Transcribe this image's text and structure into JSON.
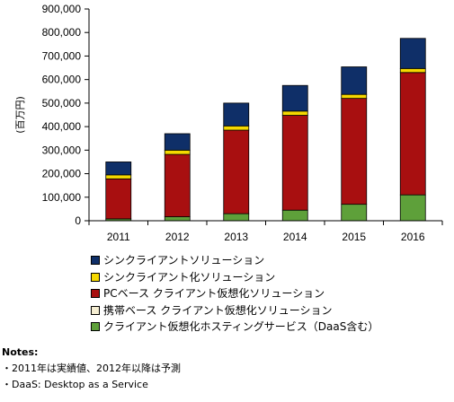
{
  "chart_data": {
    "type": "bar",
    "stacked": true,
    "categories": [
      "2011",
      "2012",
      "2013",
      "2014",
      "2015",
      "2016"
    ],
    "ylabel": "(百万円)",
    "ylim": [
      0,
      900000
    ],
    "yticks": [
      "0",
      "100,000",
      "200,000",
      "300,000",
      "400,000",
      "500,000",
      "600,000",
      "700,000",
      "800,000",
      "900,000"
    ],
    "series": [
      {
        "name": "クライアント仮想化ホスティングサービス（DaaS含む）",
        "color": "#5ea03a",
        "values": [
          8000,
          17000,
          30000,
          45000,
          70000,
          110000
        ]
      },
      {
        "name": "携帯ベース クライアント仮想化ソリューション",
        "color": "#f5eed2",
        "values": [
          0,
          0,
          0,
          0,
          0,
          0
        ]
      },
      {
        "name": "PCベース クライアント仮想化ソリューション",
        "color": "#a80f10",
        "values": [
          170000,
          265000,
          355000,
          403000,
          450000,
          520000
        ]
      },
      {
        "name": "シンクライアント化ソリューション",
        "color": "#f5d800",
        "values": [
          17000,
          18000,
          18000,
          18000,
          17000,
          17000
        ]
      },
      {
        "name": "シンクライアントソリューション",
        "color": "#0f2f68",
        "values": [
          55000,
          70000,
          97000,
          109000,
          117000,
          128000
        ]
      }
    ],
    "legend_order": [
      4,
      3,
      2,
      1,
      0
    ],
    "grid": false,
    "legend_position": "bottom"
  },
  "notes": {
    "title": "Notes:",
    "lines": [
      "・2011年は実績値、2012年以降は予測",
      "・DaaS: Desktop as a Service"
    ]
  }
}
